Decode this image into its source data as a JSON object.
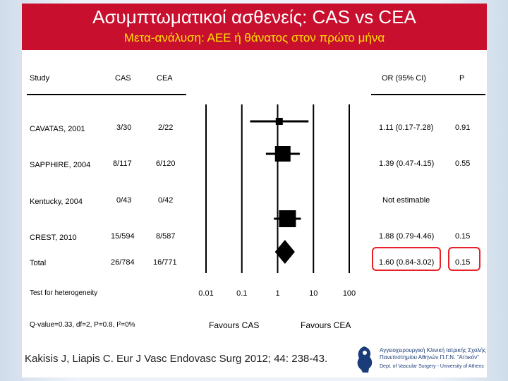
{
  "slide": {
    "title": "Ασυμπτωματικοί ασθενείς: CAS vs CEA",
    "subtitle": "Μετα-ανάλυση: ΑΕΕ ή θάνατος στον πρώτο μήνα",
    "citation": "Kakisis J, Liapis C. Eur J Vasc Endovasc Surg 2012; 44: 238-43.",
    "logo": {
      "line1": "Αγγειοχειρουργική Κλινική Ιατρικής Σχολής",
      "line2": "Πανεπιστημίου Αθηνών Π.Γ.Ν. \"Αττικόν\"",
      "line3": "Dept. of Vascular Surgery - University of Athens"
    },
    "colors": {
      "header": "#c8102e",
      "subtitle": "#ffe000",
      "highlight": "#e8202a"
    }
  },
  "table": {
    "headers": {
      "study": "Study",
      "cas": "CAS",
      "cea": "CEA",
      "or": "OR (95% CI)",
      "p": "P"
    },
    "rows": [
      {
        "study": "CAVATAS, 2001",
        "cas": "3/30",
        "cea": "2/22",
        "or": "1.11 (0.17-7.28)",
        "p": "0.91"
      },
      {
        "study": "SAPPHIRE, 2004",
        "cas": "8/117",
        "cea": "6/120",
        "or": "1.39 (0.47-4.15)",
        "p": "0.55"
      },
      {
        "study": "Kentucky, 2004",
        "cas": "0/43",
        "cea": "0/42",
        "or": "Not estimable",
        "p": ""
      },
      {
        "study": "CREST, 2010",
        "cas": "15/594",
        "cea": "8/587",
        "or": "1.88 (0.79-4.46)",
        "p": "0.15"
      },
      {
        "study": "Total",
        "cas": "26/784",
        "cea": "16/771",
        "or": "1.60 (0.84-3.02)",
        "p": "0.15"
      }
    ],
    "heterogeneity_label": "Test for heterogeneity",
    "heterogeneity_stats": "Q-value=0.33, df=2, P=0.8, I²=0%"
  },
  "chart_data": {
    "type": "forest",
    "scale": "log",
    "x_ticks": [
      "0.01",
      "0.1",
      "1",
      "10",
      "100"
    ],
    "x_tick_values": [
      0.01,
      0.1,
      1,
      10,
      100
    ],
    "xlim": [
      0.01,
      100
    ],
    "label_left": "Favours CAS",
    "label_right": "Favours CEA",
    "studies": [
      {
        "name": "CAVATAS, 2001",
        "or": 1.11,
        "lo": 0.17,
        "hi": 7.28
      },
      {
        "name": "SAPPHIRE, 2004",
        "or": 1.39,
        "lo": 0.47,
        "hi": 4.15
      },
      {
        "name": "Kentucky, 2004",
        "or": null,
        "lo": null,
        "hi": null
      },
      {
        "name": "CREST, 2010",
        "or": 1.88,
        "lo": 0.79,
        "hi": 4.46
      }
    ],
    "pooled": {
      "name": "Total",
      "or": 1.6,
      "lo": 0.84,
      "hi": 3.02
    }
  }
}
